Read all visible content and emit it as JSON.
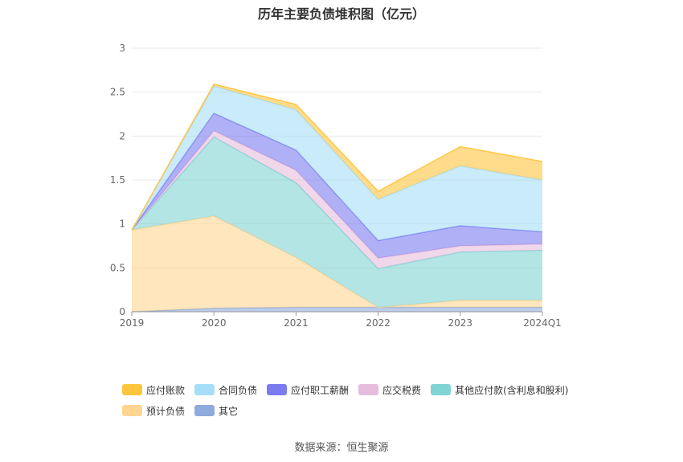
{
  "chart_data": {
    "type": "area",
    "title": "历年主要负债堆积图（亿元）",
    "categories": [
      "2019",
      "2020",
      "2021",
      "2022",
      "2023",
      "2024Q1"
    ],
    "ylim": [
      0,
      3
    ],
    "yticks": [
      "0",
      "0.5",
      "1",
      "1.5",
      "2",
      "2.5",
      "3"
    ],
    "stacked": true,
    "grid": true,
    "legend_position": "bottom",
    "series": [
      {
        "name": "其它",
        "color": "#8faadc",
        "values": [
          0.0,
          0.04,
          0.05,
          0.05,
          0.05,
          0.05
        ]
      },
      {
        "name": "预计负债",
        "color": "#ffd591",
        "values": [
          0.93,
          1.05,
          0.57,
          0.0,
          0.08,
          0.08
        ]
      },
      {
        "name": "其他应付款(含利息和股利)",
        "color": "#80d4d4",
        "values": [
          0.0,
          0.9,
          0.85,
          0.44,
          0.55,
          0.57
        ]
      },
      {
        "name": "应交税费",
        "color": "#e6bcdc",
        "values": [
          0.0,
          0.07,
          0.14,
          0.12,
          0.07,
          0.07
        ]
      },
      {
        "name": "应付职工薪酬",
        "color": "#7b7bf0",
        "values": [
          0.0,
          0.2,
          0.23,
          0.2,
          0.23,
          0.14
        ]
      },
      {
        "name": "合同负债",
        "color": "#a6def7",
        "values": [
          0.0,
          0.31,
          0.46,
          0.47,
          0.68,
          0.59
        ]
      },
      {
        "name": "应付账款",
        "color": "#ffc53d",
        "values": [
          0.0,
          0.02,
          0.06,
          0.09,
          0.22,
          0.21
        ]
      }
    ],
    "legend_order": [
      "应付账款",
      "合同负债",
      "应付职工薪酬",
      "应交税费",
      "其他应付款(含利息和股利)",
      "预计负债",
      "其它"
    ]
  },
  "footer": "数据来源：恒生聚源"
}
